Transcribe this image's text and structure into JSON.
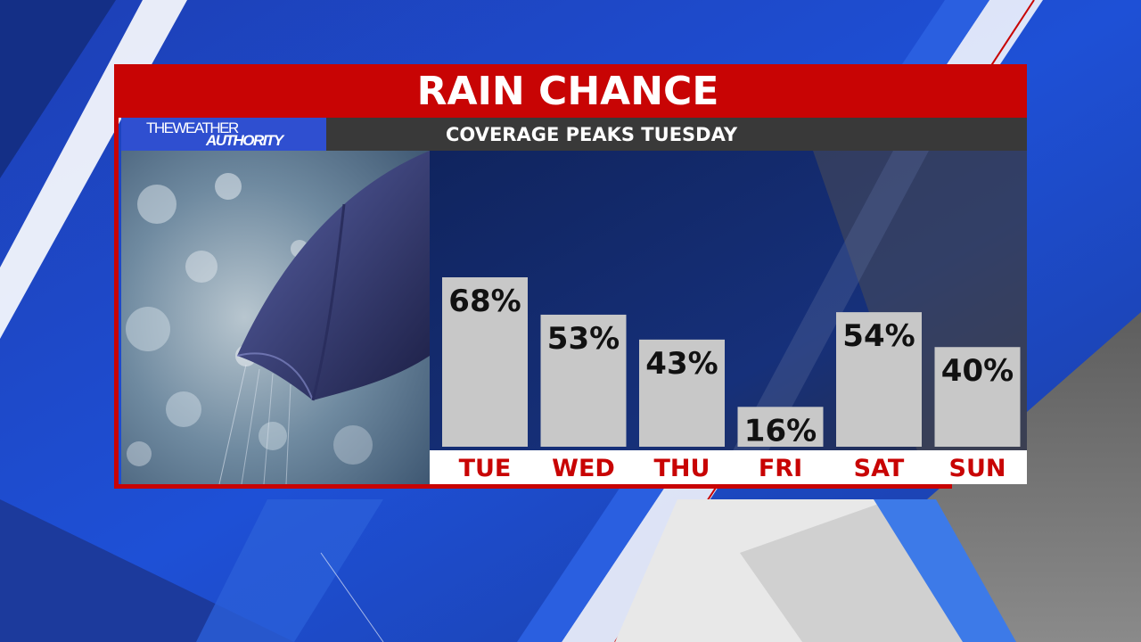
{
  "title": "RAIN CHANCE",
  "subtitle": "COVERAGE PEAKS TUESDAY",
  "logo": {
    "line1": "THEWEATHER",
    "line2": "AUTHORITY"
  },
  "colors": {
    "accent_red": "#c80404",
    "bar": "#c8c8c8",
    "day_label": "#c80404"
  },
  "chart_data": {
    "type": "bar",
    "title": "RAIN CHANCE",
    "subtitle": "COVERAGE PEAKS TUESDAY",
    "categories": [
      "TUE",
      "WED",
      "THU",
      "FRI",
      "SAT",
      "SUN"
    ],
    "values": [
      68,
      53,
      43,
      16,
      54,
      40
    ],
    "value_labels": [
      "68%",
      "53%",
      "43%",
      "16%",
      "54%",
      "40%"
    ],
    "unit": "%",
    "ylim": [
      0,
      100
    ],
    "grid": false,
    "legend": "none"
  }
}
